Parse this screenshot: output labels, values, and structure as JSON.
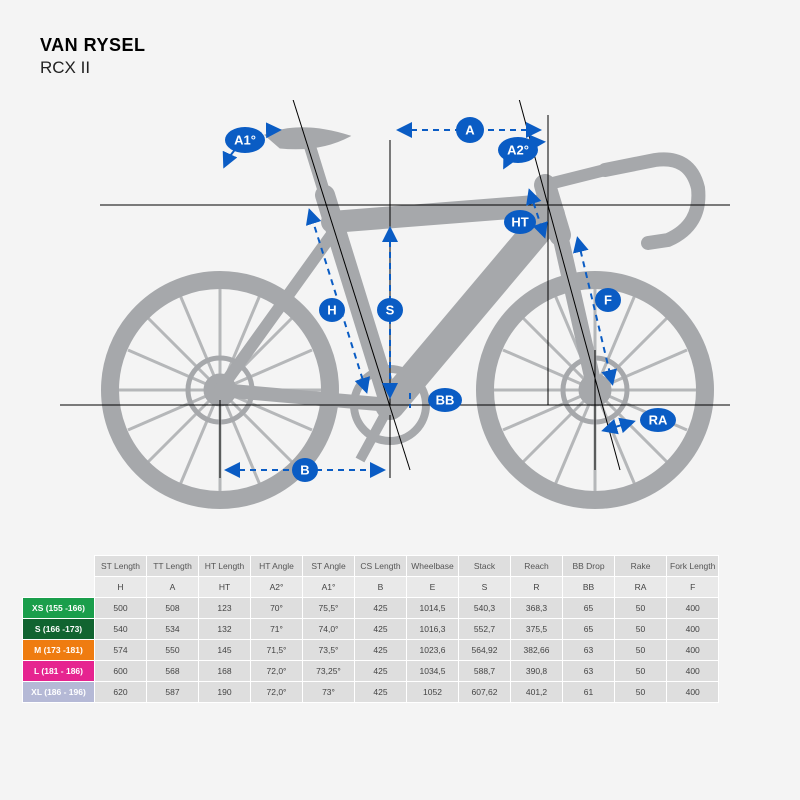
{
  "brand": "VAN RYSEL",
  "model": "RCX II",
  "colors": {
    "accent": "#0a5cc4",
    "bike": "#a6a8ab",
    "bg": "#f4f4f4"
  },
  "diagram_labels": {
    "A": "A",
    "A1": "A1°",
    "A2": "A2°",
    "HT": "HT",
    "F": "F",
    "S": "S",
    "H": "H",
    "BB": "BB",
    "B": "B",
    "RA": "RA"
  },
  "table": {
    "columns": [
      {
        "title": "ST Length",
        "sym": "H"
      },
      {
        "title": "TT Length",
        "sym": "A"
      },
      {
        "title": "HT Length",
        "sym": "HT"
      },
      {
        "title": "HT Angle",
        "sym": "A2°"
      },
      {
        "title": "ST Angle",
        "sym": "A1°"
      },
      {
        "title": "CS Length",
        "sym": "B"
      },
      {
        "title": "Wheelbase",
        "sym": "E"
      },
      {
        "title": "Stack",
        "sym": "S"
      },
      {
        "title": "Reach",
        "sym": "R"
      },
      {
        "title": "BB Drop",
        "sym": "BB"
      },
      {
        "title": "Rake",
        "sym": "RA"
      },
      {
        "title": "Fork Length",
        "sym": "F"
      }
    ],
    "rows": [
      {
        "size": "XS (155 -166)",
        "color": "#1a9e4b",
        "vals": [
          "500",
          "508",
          "123",
          "70°",
          "75,5°",
          "425",
          "1014,5",
          "540,3",
          "368,3",
          "65",
          "50",
          "400"
        ]
      },
      {
        "size": "S (166 -173)",
        "color": "#116430",
        "vals": [
          "540",
          "534",
          "132",
          "71°",
          "74,0°",
          "425",
          "1016,3",
          "552,7",
          "375,5",
          "65",
          "50",
          "400"
        ]
      },
      {
        "size": "M (173 -181)",
        "color": "#ef7c10",
        "vals": [
          "574",
          "550",
          "145",
          "71,5°",
          "73,5°",
          "425",
          "1023,6",
          "564,92",
          "382,66",
          "63",
          "50",
          "400"
        ]
      },
      {
        "size": "L (181 - 186)",
        "color": "#e62490",
        "vals": [
          "600",
          "568",
          "168",
          "72,0°",
          "73,25°",
          "425",
          "1034,5",
          "588,7",
          "390,8",
          "63",
          "50",
          "400"
        ]
      },
      {
        "size": "XL (186 - 196)",
        "color": "#b5b9d6",
        "vals": [
          "620",
          "587",
          "190",
          "72,0°",
          "73°",
          "425",
          "1052",
          "607,62",
          "401,2",
          "61",
          "50",
          "400"
        ]
      }
    ]
  }
}
